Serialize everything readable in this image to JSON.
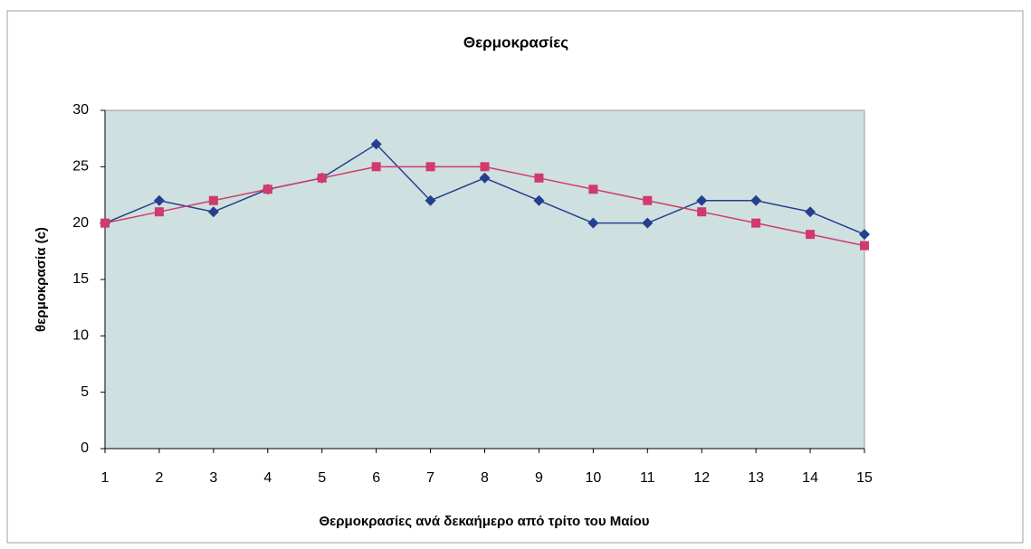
{
  "chart_data": {
    "type": "line",
    "title": "Θερμοκρασίες",
    "x_label": "Θερμοκρασίες ανά δεκαήμερο από τρίτο του Μαίου",
    "y_label": "θερμοκρασία (c)",
    "x": [
      1,
      2,
      3,
      4,
      5,
      6,
      7,
      8,
      9,
      10,
      11,
      12,
      13,
      14,
      15
    ],
    "xlim": [
      1,
      15
    ],
    "xticks": [
      1,
      2,
      3,
      4,
      5,
      6,
      7,
      8,
      9,
      10,
      11,
      12,
      13,
      14,
      15
    ],
    "ylim": [
      0,
      30
    ],
    "yticks": [
      0,
      5,
      10,
      15,
      20,
      25,
      30
    ],
    "grid": false,
    "plot_background": "#cfe0e0",
    "series": [
      {
        "color": "#23408e",
        "marker": "diamond",
        "values": [
          20,
          22,
          21,
          23,
          24,
          27,
          22,
          24,
          22,
          20,
          20,
          22,
          22,
          21,
          19
        ]
      },
      {
        "color": "#d03a6c",
        "marker": "square",
        "values": [
          20,
          21,
          22,
          23,
          24,
          25,
          25,
          25,
          24,
          23,
          22,
          21,
          20,
          19,
          18
        ]
      }
    ]
  }
}
